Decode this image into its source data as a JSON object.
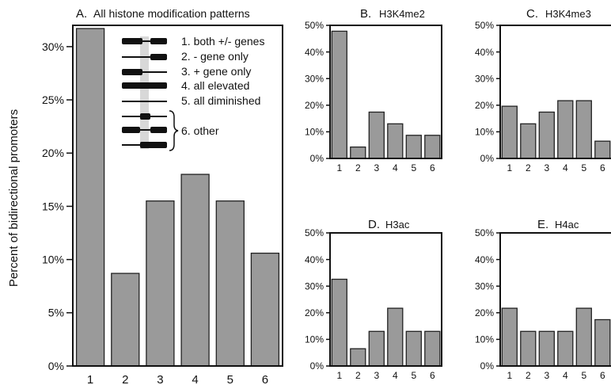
{
  "figure": {
    "ylabel": "Percent of bidirectional promoters",
    "colors": {
      "bar_fill": "#9a9a9a",
      "bar_stroke": "#222222",
      "axis": "#111111",
      "legend_shade": "#d8d8d8"
    }
  },
  "chart_data": [
    {
      "type": "bar",
      "panel": "A.",
      "title": "All histone modification patterns",
      "categories": [
        "1",
        "2",
        "3",
        "4",
        "5",
        "6"
      ],
      "values": [
        31.7,
        8.7,
        15.5,
        18.0,
        15.5,
        10.6
      ],
      "ylim": [
        0,
        32
      ],
      "yticks": [
        "0%",
        "5%",
        "10%",
        "15%",
        "20%",
        "25%",
        "30%"
      ],
      "ylabel": "Percent of bidirectional promoters",
      "legend": {
        "position": "top-right",
        "entries": [
          "1. both +/- genes",
          "2. - gene only",
          "3. + gene only",
          "4. all elevated",
          "5. all diminished",
          "6. other"
        ]
      }
    },
    {
      "type": "bar",
      "panel": "B.",
      "title": "H3K4me2",
      "categories": [
        "1",
        "2",
        "3",
        "4",
        "5",
        "6"
      ],
      "values": [
        47.8,
        4.3,
        17.4,
        13.0,
        8.7,
        8.7
      ],
      "ylim": [
        0,
        50
      ],
      "yticks": [
        "0%",
        "10%",
        "20%",
        "30%",
        "40%",
        "50%"
      ]
    },
    {
      "type": "bar",
      "panel": "C.",
      "title": "H3K4me3",
      "categories": [
        "1",
        "2",
        "3",
        "4",
        "5",
        "6"
      ],
      "values": [
        19.6,
        13.0,
        17.4,
        21.7,
        21.7,
        6.5
      ],
      "ylim": [
        0,
        50
      ],
      "yticks": [
        "0%",
        "10%",
        "20%",
        "30%",
        "40%",
        "50%"
      ]
    },
    {
      "type": "bar",
      "panel": "D.",
      "title": "H3ac",
      "categories": [
        "1",
        "2",
        "3",
        "4",
        "5",
        "6"
      ],
      "values": [
        32.6,
        6.5,
        13.0,
        21.7,
        13.0,
        13.0
      ],
      "ylim": [
        0,
        50
      ],
      "yticks": [
        "0%",
        "10%",
        "20%",
        "30%",
        "40%",
        "50%"
      ]
    },
    {
      "type": "bar",
      "panel": "E.",
      "title": "H4ac",
      "categories": [
        "1",
        "2",
        "3",
        "4",
        "5",
        "6"
      ],
      "values": [
        21.7,
        13.0,
        13.0,
        13.0,
        21.7,
        17.4
      ],
      "ylim": [
        0,
        50
      ],
      "yticks": [
        "0%",
        "10%",
        "20%",
        "30%",
        "40%",
        "50%"
      ]
    }
  ]
}
